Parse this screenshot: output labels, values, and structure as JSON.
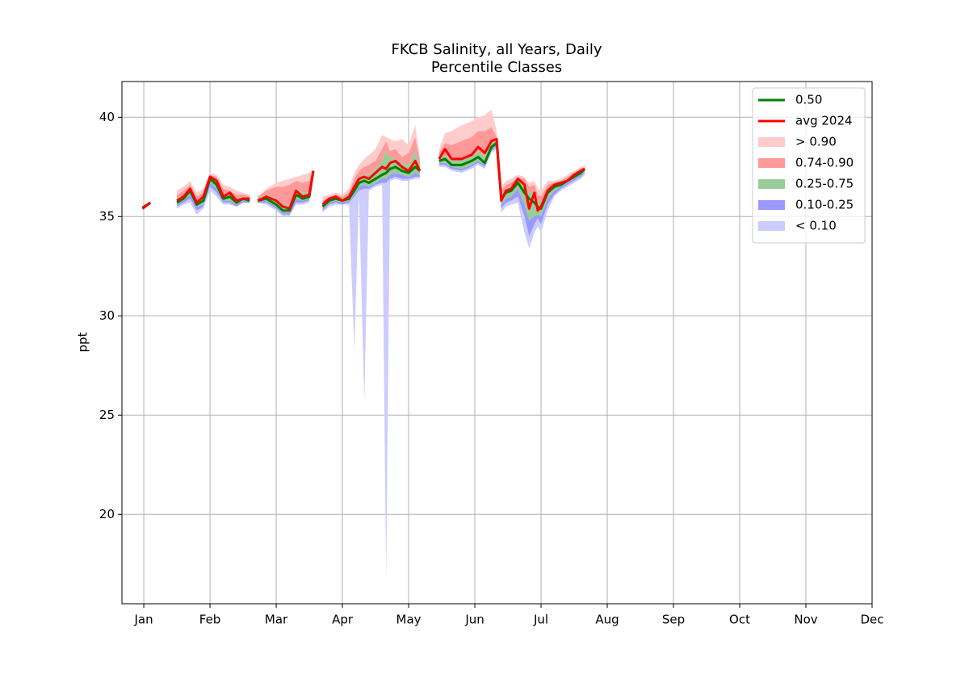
{
  "chart_data": {
    "type": "percentile-bands",
    "title": "FKCB Salinity, all Years, Daily",
    "subtitle": "Percentile Classes",
    "y_label": "ppt",
    "xlim": [
      0.67,
      12
    ],
    "xticks": [
      {
        "value": 1,
        "label": "Jan"
      },
      {
        "value": 2,
        "label": "Feb"
      },
      {
        "value": 3,
        "label": "Mar"
      },
      {
        "value": 4,
        "label": "Apr"
      },
      {
        "value": 5,
        "label": "May"
      },
      {
        "value": 6,
        "label": "Jun"
      },
      {
        "value": 7,
        "label": "Jul"
      },
      {
        "value": 8,
        "label": "Aug"
      },
      {
        "value": 9,
        "label": "Sep"
      },
      {
        "value": 10,
        "label": "Oct"
      },
      {
        "value": 11,
        "label": "Nov"
      },
      {
        "value": 12,
        "label": "Dec"
      }
    ],
    "ylim": [
      15.5,
      41.8
    ],
    "yticks": [
      20,
      25,
      30,
      35,
      40
    ],
    "grid": true,
    "legend": "upper right",
    "x": [
      0.98,
      1.1,
      null,
      1.5,
      1.6,
      1.7,
      1.8,
      1.9,
      2.0,
      2.1,
      2.2,
      2.3,
      2.4,
      2.5,
      2.6,
      null,
      2.72,
      2.85,
      3.0,
      3.1,
      3.2,
      3.3,
      3.4,
      3.5,
      3.56,
      null,
      3.7,
      3.8,
      3.9,
      4.0,
      4.1,
      4.18,
      4.25,
      4.33,
      4.4,
      4.5,
      4.6,
      4.66,
      4.72,
      4.8,
      4.9,
      5.0,
      5.1,
      5.17,
      null,
      5.46,
      5.55,
      5.65,
      5.8,
      5.95,
      6.05,
      6.15,
      6.25,
      6.33,
      6.4,
      6.47,
      6.55,
      6.65,
      6.75,
      6.82,
      6.9,
      6.95,
      7.0,
      7.1,
      7.2,
      7.3,
      7.4,
      7.5,
      7.6,
      7.66
    ],
    "series": [
      {
        "name": "0.50",
        "type": "line",
        "color": "#008000",
        "values": [
          35.45,
          35.7,
          null,
          35.7,
          35.9,
          36.3,
          35.6,
          35.8,
          36.9,
          36.6,
          35.9,
          36.0,
          35.7,
          35.9,
          35.8,
          null,
          35.8,
          35.9,
          35.6,
          35.3,
          35.3,
          36.1,
          35.9,
          36.0,
          37.3,
          null,
          35.5,
          35.8,
          35.9,
          35.8,
          35.9,
          36.3,
          36.7,
          36.8,
          36.7,
          36.9,
          37.1,
          37.2,
          37.4,
          37.5,
          37.3,
          37.2,
          37.5,
          37.3,
          null,
          37.8,
          37.9,
          37.6,
          37.6,
          37.8,
          38.0,
          37.7,
          38.5,
          38.7,
          35.9,
          36.2,
          36.3,
          36.7,
          36.2,
          35.9,
          35.7,
          35.5,
          35.4,
          36.2,
          36.5,
          36.6,
          36.8,
          37.0,
          37.2,
          37.4
        ]
      },
      {
        "name": "avg 2024",
        "type": "line",
        "color": "#ff0000",
        "values": [
          35.4,
          35.7,
          null,
          35.8,
          36.0,
          36.4,
          35.7,
          36.0,
          37.0,
          36.8,
          36.0,
          36.2,
          35.8,
          35.9,
          35.9,
          null,
          35.8,
          36.0,
          35.8,
          35.5,
          35.4,
          36.3,
          36.0,
          36.1,
          37.3,
          null,
          35.6,
          35.9,
          36.0,
          35.8,
          36.0,
          36.5,
          36.9,
          37.0,
          36.9,
          37.2,
          37.5,
          37.4,
          37.7,
          37.8,
          37.5,
          37.3,
          37.8,
          37.3,
          null,
          37.9,
          38.4,
          37.9,
          37.9,
          38.1,
          38.5,
          38.2,
          38.8,
          38.9,
          35.8,
          36.3,
          36.4,
          36.9,
          36.6,
          35.4,
          36.2,
          35.3,
          35.5,
          36.3,
          36.6,
          36.7,
          36.8,
          37.1,
          37.3,
          37.4
        ]
      },
      {
        "name": "> 0.90",
        "type": "area",
        "color": "#ffcccc",
        "values": [
          35.5,
          35.8,
          null,
          36.3,
          36.5,
          36.8,
          36.2,
          36.4,
          37.2,
          37.1,
          36.6,
          36.5,
          36.3,
          36.2,
          36.1,
          null,
          36.0,
          36.4,
          36.7,
          36.8,
          36.9,
          37.0,
          37.1,
          37.2,
          37.4,
          null,
          36.0,
          36.1,
          36.2,
          36.1,
          36.4,
          37.2,
          37.6,
          37.9,
          38.1,
          38.4,
          39.1,
          39.0,
          38.9,
          38.8,
          38.9,
          38.6,
          39.6,
          38.0,
          null,
          38.4,
          39.2,
          39.3,
          39.6,
          39.8,
          40.0,
          40.1,
          40.4,
          39.3,
          36.5,
          36.8,
          36.9,
          37.1,
          37.0,
          36.7,
          36.8,
          36.4,
          36.3,
          36.8,
          36.8,
          36.9,
          37.1,
          37.3,
          37.5,
          37.6
        ]
      },
      {
        "name": "0.74-0.90",
        "type": "area",
        "color": "#ff9999",
        "values": [
          35.5,
          35.75,
          null,
          36.1,
          36.3,
          36.6,
          36.0,
          36.2,
          37.1,
          37.0,
          36.4,
          36.3,
          36.1,
          36.1,
          36.0,
          null,
          36.0,
          36.3,
          36.5,
          36.5,
          36.6,
          36.8,
          36.7,
          36.8,
          37.3,
          null,
          35.8,
          36.0,
          36.1,
          36.0,
          36.2,
          36.9,
          37.3,
          37.5,
          37.6,
          37.8,
          38.4,
          38.8,
          38.3,
          38.4,
          38.0,
          38.2,
          39.0,
          37.8,
          null,
          38.2,
          38.7,
          38.6,
          38.8,
          39.0,
          39.3,
          39.3,
          39.5,
          39.0,
          36.3,
          36.6,
          36.7,
          37.0,
          36.9,
          36.5,
          36.6,
          36.1,
          36.0,
          36.6,
          36.7,
          36.8,
          37.0,
          37.2,
          37.4,
          37.5
        ]
      },
      {
        "name": "0.25-0.75",
        "type": "area",
        "color": "#99cc99",
        "values": [
          35.45,
          35.72,
          null,
          35.9,
          36.1,
          36.5,
          35.8,
          36.0,
          37.0,
          36.8,
          36.1,
          36.2,
          35.9,
          36.0,
          35.9,
          null,
          35.9,
          36.1,
          35.9,
          35.6,
          35.6,
          36.4,
          36.2,
          36.2,
          37.3,
          null,
          35.7,
          35.9,
          36.0,
          35.9,
          36.1,
          36.6,
          37.0,
          37.1,
          37.1,
          37.4,
          37.8,
          38.3,
          38.0,
          37.9,
          37.7,
          37.6,
          38.3,
          37.6,
          null,
          37.9,
          38.1,
          37.8,
          37.9,
          38.0,
          38.3,
          38.0,
          38.7,
          38.8,
          36.1,
          36.4,
          36.5,
          36.9,
          36.7,
          36.2,
          36.3,
          35.8,
          35.7,
          36.4,
          36.6,
          36.7,
          36.9,
          37.1,
          37.3,
          37.4
        ]
      },
      {
        "name": "0.10-0.25",
        "type": "area",
        "color": "#9999ff",
        "values": [
          35.4,
          35.68,
          null,
          35.6,
          35.8,
          36.1,
          35.5,
          35.6,
          36.7,
          36.4,
          35.8,
          35.8,
          35.6,
          35.8,
          35.8,
          null,
          35.8,
          35.8,
          35.5,
          35.2,
          35.2,
          35.9,
          35.8,
          35.9,
          37.2,
          null,
          35.4,
          35.7,
          35.8,
          35.7,
          35.8,
          36.1,
          36.5,
          36.6,
          36.5,
          36.7,
          36.9,
          36.9,
          37.1,
          37.2,
          37.1,
          37.0,
          37.2,
          37.1,
          null,
          37.7,
          37.7,
          37.5,
          37.4,
          37.6,
          37.8,
          37.6,
          38.4,
          38.6,
          35.6,
          35.9,
          36.0,
          36.4,
          35.6,
          34.8,
          35.0,
          35.1,
          35.0,
          35.9,
          36.3,
          36.5,
          36.7,
          36.9,
          37.1,
          37.3
        ]
      },
      {
        "name": "< 0.10",
        "type": "area",
        "color": "#ccccff",
        "values": [
          35.35,
          35.65,
          null,
          35.5,
          35.7,
          35.9,
          35.3,
          35.5,
          36.5,
          36.2,
          35.7,
          35.7,
          35.5,
          35.7,
          35.7,
          null,
          35.7,
          35.7,
          35.4,
          35.1,
          35.1,
          35.7,
          35.7,
          35.8,
          37.2,
          null,
          35.3,
          35.6,
          35.7,
          35.6,
          35.7,
          36.0,
          36.3,
          36.4,
          36.4,
          36.6,
          36.7,
          36.7,
          36.9,
          37.0,
          36.9,
          36.9,
          37.0,
          37.0,
          null,
          37.6,
          37.6,
          37.4,
          37.3,
          37.5,
          37.7,
          37.5,
          38.3,
          38.5,
          35.4,
          35.7,
          35.8,
          36.0,
          35.0,
          34.0,
          34.6,
          34.9,
          34.6,
          35.6,
          36.1,
          36.4,
          36.6,
          36.8,
          37.0,
          37.2
        ],
        "lower": [
          35.3,
          35.6,
          null,
          35.4,
          35.6,
          35.7,
          35.1,
          35.4,
          36.3,
          36.0,
          35.6,
          35.6,
          35.5,
          35.7,
          35.7,
          null,
          35.7,
          35.6,
          35.3,
          35.0,
          35.0,
          35.6,
          35.6,
          35.7,
          37.2,
          null,
          35.2,
          35.5,
          35.6,
          35.6,
          35.6,
          28.3,
          36.2,
          25.7,
          36.3,
          36.5,
          36.6,
          16.8,
          36.8,
          36.9,
          36.8,
          36.8,
          36.9,
          36.9,
          null,
          37.5,
          37.5,
          37.3,
          37.2,
          37.4,
          37.6,
          37.4,
          38.2,
          38.4,
          35.2,
          35.5,
          35.6,
          35.7,
          34.2,
          33.4,
          34.2,
          34.5,
          34.2,
          35.3,
          36.0,
          36.3,
          36.5,
          36.7,
          36.9,
          37.1
        ]
      }
    ]
  }
}
